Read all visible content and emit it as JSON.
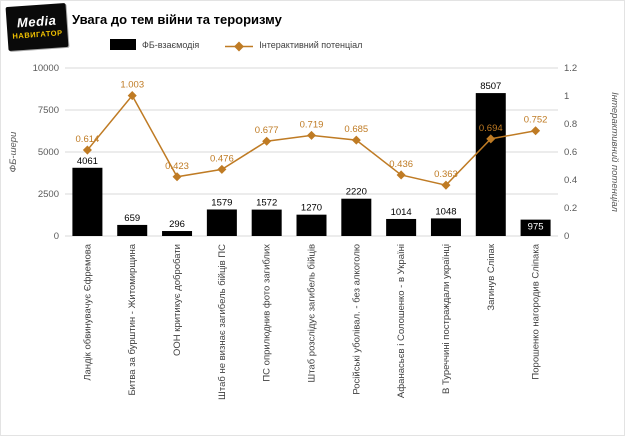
{
  "logo": {
    "line1": "Media",
    "line2": "НАВИГАТОР"
  },
  "header": {
    "title": "Увага до тем війни та тероризму"
  },
  "legend": [
    {
      "label": "ФБ-взаємодія"
    },
    {
      "label": "Інтерактивний потенціал"
    }
  ],
  "colors": {
    "bar": "#000000",
    "line": "#bf7b24",
    "grid": "#d9d9d9",
    "tick": "#595959",
    "category": "#404040"
  },
  "chart_data": {
    "type": "combo-bar-line",
    "title": "Увага до тем війни та тероризму",
    "categories": [
      "Ландік обвинувачує Єфремова",
      "Битва за бурштин - Житомирщина",
      "ООН критикує добробати",
      "Штаб не визнає загибель бійців ПС",
      "ПС оприлюднив фото загиблих",
      "Штаб розслідує загибель бійців",
      "Російські уболівал. - без алкоголю",
      "Афанасьєв і Солошенко - в Україні",
      "В Туреччині постраждали українці",
      "Загинув Сліпак",
      "Порошенко нагородив Сліпака"
    ],
    "series": [
      {
        "name": "ФБ-взаємодія",
        "type": "bar",
        "axis": "left",
        "values": [
          4061,
          659,
          296,
          1579,
          1572,
          1270,
          2220,
          1014,
          1048,
          8507,
          975
        ],
        "labels": [
          "4061",
          "659",
          "296",
          "1579",
          "1572",
          "1270",
          "2220",
          "1014",
          "1048",
          "8507",
          "975"
        ]
      },
      {
        "name": "Інтерактивний потенціал",
        "type": "line",
        "axis": "right",
        "values": [
          0.614,
          1.003,
          0.423,
          0.476,
          0.677,
          0.719,
          0.685,
          0.436,
          0.363,
          0.694,
          0.752
        ],
        "labels": [
          "0.614",
          "1.003",
          "0.423",
          "0.476",
          "0.677",
          "0.719",
          "0.685",
          "0.436",
          "0.363",
          "0.694",
          "0.752"
        ]
      }
    ],
    "inside_label_indexes": [
      10
    ],
    "left_axis": {
      "label": "ФБ-шери",
      "min": 0,
      "max": 10000,
      "ticks": [
        0,
        2500,
        5000,
        7500,
        10000
      ],
      "tick_labels": [
        "0",
        "2500",
        "5000",
        "7500",
        "10000"
      ]
    },
    "right_axis": {
      "label": "Інтерактивний потенціал",
      "min": 0,
      "max": 1.2,
      "ticks": [
        0,
        0.2,
        0.4,
        0.6,
        0.8,
        1.0,
        1.2
      ],
      "tick_labels": [
        "0",
        "0.2",
        "0.4",
        "0.6",
        "0.8",
        "1",
        "1.2"
      ]
    },
    "grid": true,
    "legend_position": "top"
  }
}
